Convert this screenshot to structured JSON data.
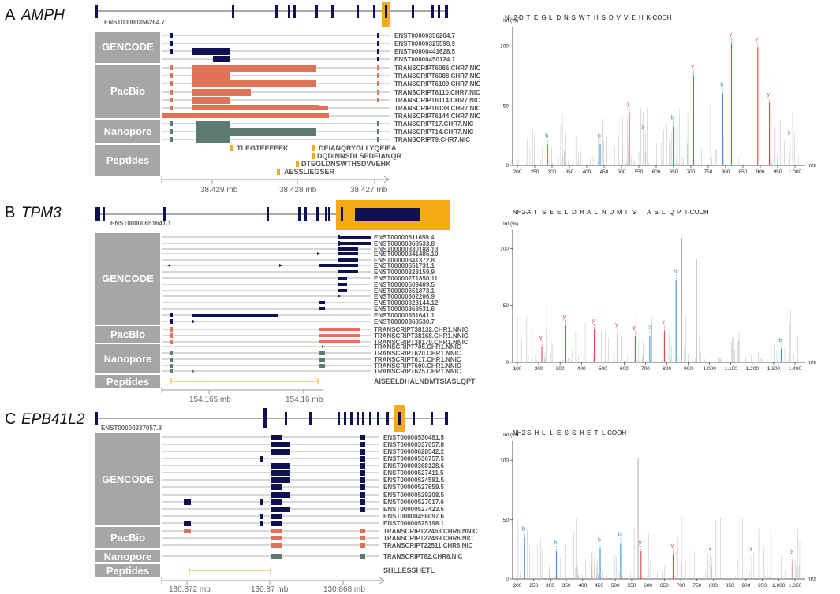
{
  "colors": {
    "gencode": "#0f1150",
    "pacbio": "#e07258",
    "nanopore": "#5d7b6e",
    "peptide": "#f4ab16",
    "category_bg": "#a6a6a6",
    "b_ion": "#3a8fd9",
    "y_ion": "#e0433f"
  },
  "panels": [
    {
      "letter": "A",
      "gene": "AMPH",
      "reference": "ENST00000356264.7",
      "categories": [
        {
          "name": "GENCODE",
          "transcripts": [
            "ENST00000356264.7",
            "ENST00000325590.9",
            "ENST00000441628.5",
            "ENST00000450124.1"
          ]
        },
        {
          "name": "PacBio",
          "transcripts": [
            "TRANSCRIPT6086.CHR7.NIC",
            "TRANSCRIPT6088.CHR7.NIC",
            "TRANSCRIPT6109.CHR7.NIC",
            "TRANSCRIPT6110.CHR7.NIC",
            "TRANSCRIPT6114.CHR7.NIC",
            "TRANSCRIPT6138.CHR7.NIC",
            "TRANSCRIPT6144.CHR7.NIC"
          ]
        },
        {
          "name": "Nanopore",
          "transcripts": [
            "TRANSCRIPT17.CHR7.NIC",
            "TRANSCRIPT14.CHR7.NIC",
            "TRANSCRIPT9.CHR7.NIC"
          ]
        },
        {
          "name": "Peptides",
          "transcripts": []
        }
      ],
      "peptides": [
        "TLEGTEEFEEK",
        "DEIANQRYGLLYQEIEA",
        "DQDINNSDLSEDEIANQR",
        "DTEGLDNSWTHSDVVEHK",
        "AESSLIEGSER"
      ],
      "axis_ticks": [
        "38.429 mb",
        "38.428 mb",
        "38.427 mb"
      ],
      "spectrum": {
        "sequence": [
          "NH2-",
          "D",
          "T",
          "E",
          "G",
          "L",
          "D",
          "N",
          "S",
          "W",
          "T",
          "H",
          "S",
          "D",
          "V",
          "V",
          "E",
          "H",
          "K-COOH"
        ],
        "y_label": "Int (%)",
        "x_label": "m/z",
        "x_ticks": [
          "200",
          "250",
          "300",
          "350",
          "400",
          "450",
          "500",
          "550",
          "600",
          "650",
          "700",
          "750",
          "800",
          "850",
          "900",
          "950",
          "1.000"
        ],
        "y_ticks": [
          "0",
          "50",
          "100"
        ]
      }
    },
    {
      "letter": "B",
      "gene": "TPM3",
      "reference": "ENST00000651641.1",
      "categories": [
        {
          "name": "GENCODE",
          "transcripts": [
            "ENST00000611659.4",
            "ENST00000368533.8",
            "ENST00000330188.13",
            "ENST00000341485.10",
            "ENST00000341372.8",
            "ENST00000651731.1",
            "ENST00000328159.9",
            "ENST00000271850.11",
            "ENST00000509409.5",
            "ENST00000651873.1",
            "ENST00000302206.9",
            "ENST00000323144.12",
            "ENST00000368531.6",
            "ENST00000651641.1",
            "ENST00000368530.7"
          ]
        },
        {
          "name": "PacBio",
          "transcripts": [
            "TRANSCRIPT38132.CHR1.NNIC",
            "TRANSCRIPT38168.CHR1.NNIC",
            "TRANSCRIPT38170.CHR1.NNIC"
          ]
        },
        {
          "name": "Nanopore",
          "transcripts": [
            "TRANSCRIPT705.CHR1.NNIC",
            "TRANSCRIPT620.CHR1.NNIC",
            "TRANSCRIPT617.CHR1.NNIC",
            "TRANSCRIPT600.CHR1.NNIC",
            "TRANSCRIPT625.CHR1.NNIC"
          ]
        },
        {
          "name": "Peptides",
          "transcripts": []
        }
      ],
      "peptides": [
        "AISEELDHALNDMTSIASLQPT"
      ],
      "axis_ticks": [
        "154.165 mb",
        "154.16 mb"
      ],
      "spectrum": {
        "sequence": [
          "NH2-",
          "A",
          "I",
          "S",
          "E",
          "E",
          "L",
          "D",
          "H",
          "A",
          "L",
          "N",
          "D",
          "M",
          "T",
          "S",
          "I",
          "A",
          "S",
          "L",
          "Q",
          "P",
          "T-COOH"
        ],
        "y_label": "Int (%)",
        "x_label": "m/z",
        "x_ticks": [
          "100",
          "200",
          "300",
          "400",
          "500",
          "600",
          "700",
          "800",
          "900",
          "1.000",
          "1.100",
          "1.200",
          "1.300",
          "1.400"
        ],
        "y_ticks": [
          "0",
          "50",
          "100"
        ]
      }
    },
    {
      "letter": "C",
      "gene": "EPB41L2",
      "reference": "ENST00000337057.8",
      "categories": [
        {
          "name": "GENCODE",
          "transcripts": [
            "ENST00000530481.5",
            "ENST00000337057.8",
            "ENST00000628542.2",
            "ENST00000530757.5",
            "ENST00000368128.6",
            "ENST00000527411.5",
            "ENST00000524581.5",
            "ENST00000527659.5",
            "ENST00000529208.5",
            "ENST00000527017.6",
            "ENST00000527423.5",
            "ENST00000456097.6",
            "ENST00000525198.1"
          ]
        },
        {
          "name": "PacBio",
          "transcripts": [
            "TRANSCRIPT22463.CHR6.NNIC",
            "TRANSCRIPT22489.CHR6.NIC",
            "TRANSCRIPT22511.CHR6.NIC"
          ]
        },
        {
          "name": "Nanopore",
          "transcripts": [
            "TRANSCRIPT62.CHR6.NIC"
          ]
        },
        {
          "name": "Peptides",
          "transcripts": []
        }
      ],
      "peptides": [
        "SHLLESSHETL"
      ],
      "axis_ticks": [
        "130.872 mb",
        "130.87 mb",
        "130.868 mb"
      ],
      "spectrum": {
        "sequence": [
          "NH2-",
          "S",
          "H",
          "L",
          "L",
          "E",
          "S",
          "S",
          "H",
          "E",
          "T",
          "L-COOH"
        ],
        "y_label": "Int (%)",
        "x_label": "m/z",
        "x_ticks": [
          "200",
          "250",
          "300",
          "350",
          "400",
          "450",
          "500",
          "550",
          "600",
          "650",
          "700",
          "750",
          "800",
          "850",
          "900",
          "950",
          "1.000",
          "1.050"
        ],
        "y_ticks": [
          "0",
          "50",
          "100"
        ]
      }
    }
  ]
}
